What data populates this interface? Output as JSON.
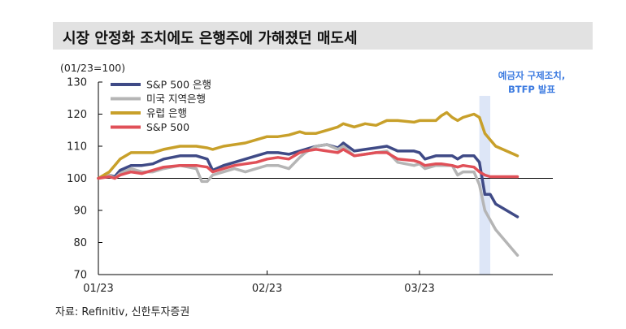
{
  "title": "시장 안정화 조치에도 은행주에 가해졌던 매도세",
  "source": "자료: Refinitiv, 신한투자증권",
  "chart_data": {
    "type": "line",
    "unit_label": "(01/23=100)",
    "ylim": [
      70,
      130
    ],
    "yticks": [
      70,
      80,
      90,
      100,
      110,
      120,
      130
    ],
    "x_range": [
      "2023-01-01",
      "2023-03-24"
    ],
    "xticks": [
      {
        "label": "01/23",
        "date": "2023-01-01"
      },
      {
        "label": "02/23",
        "date": "2023-02-01"
      },
      {
        "label": "03/23",
        "date": "2023-03-01"
      }
    ],
    "reference_line": 100,
    "annotation": {
      "text": [
        "예금자 구제조치,",
        "BTFP 발표"
      ],
      "date_range": [
        "2023-03-12",
        "2023-03-14"
      ],
      "color": "#3b7ae0"
    },
    "legend_position": "top-left",
    "series": [
      {
        "name": "S&P 500 은행",
        "color": "#3f4a86",
        "points": [
          [
            "2023-01-01",
            100
          ],
          [
            "2023-01-03",
            101
          ],
          [
            "2023-01-04",
            100.5
          ],
          [
            "2023-01-05",
            102.5
          ],
          [
            "2023-01-07",
            104
          ],
          [
            "2023-01-09",
            104
          ],
          [
            "2023-01-11",
            104.5
          ],
          [
            "2023-01-13",
            106
          ],
          [
            "2023-01-16",
            107
          ],
          [
            "2023-01-19",
            107
          ],
          [
            "2023-01-21",
            106
          ],
          [
            "2023-01-22",
            102.5
          ],
          [
            "2023-01-24",
            104
          ],
          [
            "2023-01-26",
            105
          ],
          [
            "2023-01-28",
            106
          ],
          [
            "2023-01-30",
            107
          ],
          [
            "2023-02-01",
            108
          ],
          [
            "2023-02-03",
            108
          ],
          [
            "2023-02-05",
            107.5
          ],
          [
            "2023-02-07",
            108.5
          ],
          [
            "2023-02-08",
            109
          ],
          [
            "2023-02-10",
            110
          ],
          [
            "2023-02-12",
            110.5
          ],
          [
            "2023-02-14",
            109.5
          ],
          [
            "2023-02-15",
            111
          ],
          [
            "2023-02-17",
            108.5
          ],
          [
            "2023-02-19",
            109
          ],
          [
            "2023-02-21",
            109.5
          ],
          [
            "2023-02-23",
            110
          ],
          [
            "2023-02-25",
            108.5
          ],
          [
            "2023-02-28",
            108.5
          ],
          [
            "2023-03-01",
            108
          ],
          [
            "2023-03-02",
            106
          ],
          [
            "2023-03-04",
            107
          ],
          [
            "2023-03-05",
            107
          ],
          [
            "2023-03-07",
            107
          ],
          [
            "2023-03-08",
            106
          ],
          [
            "2023-03-09",
            107
          ],
          [
            "2023-03-11",
            107
          ],
          [
            "2023-03-12",
            105
          ],
          [
            "2023-03-13",
            95
          ],
          [
            "2023-03-14",
            95
          ],
          [
            "2023-03-15",
            92
          ],
          [
            "2023-03-17",
            90
          ],
          [
            "2023-03-19",
            88
          ]
        ]
      },
      {
        "name": "미국 지역은행",
        "color": "#b5b5b5",
        "points": [
          [
            "2023-01-01",
            100
          ],
          [
            "2023-01-03",
            101
          ],
          [
            "2023-01-04",
            100
          ],
          [
            "2023-01-05",
            101.5
          ],
          [
            "2023-01-07",
            103
          ],
          [
            "2023-01-09",
            102
          ],
          [
            "2023-01-11",
            102
          ],
          [
            "2023-01-13",
            103
          ],
          [
            "2023-01-16",
            104
          ],
          [
            "2023-01-19",
            103
          ],
          [
            "2023-01-20",
            99
          ],
          [
            "2023-01-21",
            99
          ],
          [
            "2023-01-22",
            101
          ],
          [
            "2023-01-24",
            102
          ],
          [
            "2023-01-26",
            103
          ],
          [
            "2023-01-28",
            102
          ],
          [
            "2023-01-30",
            103
          ],
          [
            "2023-02-01",
            104
          ],
          [
            "2023-02-03",
            104
          ],
          [
            "2023-02-05",
            103
          ],
          [
            "2023-02-07",
            106.5
          ],
          [
            "2023-02-08",
            108
          ],
          [
            "2023-02-10",
            110
          ],
          [
            "2023-02-12",
            110.5
          ],
          [
            "2023-02-14",
            109
          ],
          [
            "2023-02-15",
            110
          ],
          [
            "2023-02-17",
            107
          ],
          [
            "2023-02-19",
            107.5
          ],
          [
            "2023-02-21",
            108
          ],
          [
            "2023-02-23",
            108.5
          ],
          [
            "2023-02-25",
            105
          ],
          [
            "2023-02-28",
            104
          ],
          [
            "2023-03-01",
            104.5
          ],
          [
            "2023-03-02",
            103
          ],
          [
            "2023-03-04",
            104
          ],
          [
            "2023-03-05",
            104
          ],
          [
            "2023-03-07",
            104
          ],
          [
            "2023-03-08",
            101
          ],
          [
            "2023-03-09",
            102
          ],
          [
            "2023-03-11",
            102
          ],
          [
            "2023-03-12",
            98
          ],
          [
            "2023-03-13",
            90
          ],
          [
            "2023-03-14",
            87
          ],
          [
            "2023-03-15",
            84
          ],
          [
            "2023-03-17",
            80
          ],
          [
            "2023-03-19",
            76
          ]
        ]
      },
      {
        "name": "유럽 은행",
        "color": "#c8a02a",
        "points": [
          [
            "2023-01-01",
            100
          ],
          [
            "2023-01-03",
            102
          ],
          [
            "2023-01-04",
            104
          ],
          [
            "2023-01-05",
            106
          ],
          [
            "2023-01-07",
            108
          ],
          [
            "2023-01-09",
            108
          ],
          [
            "2023-01-11",
            108
          ],
          [
            "2023-01-13",
            109
          ],
          [
            "2023-01-16",
            110
          ],
          [
            "2023-01-19",
            110
          ],
          [
            "2023-01-21",
            109.5
          ],
          [
            "2023-01-22",
            109
          ],
          [
            "2023-01-24",
            110
          ],
          [
            "2023-01-26",
            110.5
          ],
          [
            "2023-01-28",
            111
          ],
          [
            "2023-01-30",
            112
          ],
          [
            "2023-02-01",
            113
          ],
          [
            "2023-02-03",
            113
          ],
          [
            "2023-02-05",
            113.5
          ],
          [
            "2023-02-07",
            114.5
          ],
          [
            "2023-02-08",
            114
          ],
          [
            "2023-02-10",
            114
          ],
          [
            "2023-02-12",
            115
          ],
          [
            "2023-02-14",
            116
          ],
          [
            "2023-02-15",
            117
          ],
          [
            "2023-02-17",
            116
          ],
          [
            "2023-02-19",
            117
          ],
          [
            "2023-02-21",
            116.5
          ],
          [
            "2023-02-23",
            118
          ],
          [
            "2023-02-25",
            118
          ],
          [
            "2023-02-28",
            117.5
          ],
          [
            "2023-03-01",
            118
          ],
          [
            "2023-03-02",
            118
          ],
          [
            "2023-03-04",
            118
          ],
          [
            "2023-03-05",
            119.5
          ],
          [
            "2023-03-06",
            120.5
          ],
          [
            "2023-03-07",
            119
          ],
          [
            "2023-03-08",
            118
          ],
          [
            "2023-03-09",
            119
          ],
          [
            "2023-03-11",
            120
          ],
          [
            "2023-03-12",
            119
          ],
          [
            "2023-03-13",
            114
          ],
          [
            "2023-03-14",
            112
          ],
          [
            "2023-03-15",
            110
          ],
          [
            "2023-03-17",
            108.5
          ],
          [
            "2023-03-19",
            107
          ]
        ]
      },
      {
        "name": "S&P 500",
        "color": "#e05058",
        "points": [
          [
            "2023-01-01",
            100
          ],
          [
            "2023-01-03",
            100.5
          ],
          [
            "2023-01-04",
            100
          ],
          [
            "2023-01-05",
            101
          ],
          [
            "2023-01-07",
            102
          ],
          [
            "2023-01-09",
            101.5
          ],
          [
            "2023-01-11",
            102.5
          ],
          [
            "2023-01-13",
            103.5
          ],
          [
            "2023-01-16",
            104
          ],
          [
            "2023-01-19",
            104
          ],
          [
            "2023-01-21",
            103.5
          ],
          [
            "2023-01-22",
            102
          ],
          [
            "2023-01-24",
            103
          ],
          [
            "2023-01-26",
            104
          ],
          [
            "2023-01-28",
            104.5
          ],
          [
            "2023-01-30",
            105
          ],
          [
            "2023-02-01",
            106
          ],
          [
            "2023-02-03",
            106.5
          ],
          [
            "2023-02-05",
            106
          ],
          [
            "2023-02-07",
            108
          ],
          [
            "2023-02-08",
            108.5
          ],
          [
            "2023-02-10",
            109
          ],
          [
            "2023-02-12",
            108.5
          ],
          [
            "2023-02-14",
            108
          ],
          [
            "2023-02-15",
            109
          ],
          [
            "2023-02-17",
            107
          ],
          [
            "2023-02-19",
            107.5
          ],
          [
            "2023-02-21",
            108
          ],
          [
            "2023-02-23",
            108
          ],
          [
            "2023-02-25",
            106
          ],
          [
            "2023-02-28",
            105.5
          ],
          [
            "2023-03-01",
            105
          ],
          [
            "2023-03-02",
            104
          ],
          [
            "2023-03-04",
            104.5
          ],
          [
            "2023-03-05",
            104.5
          ],
          [
            "2023-03-07",
            104
          ],
          [
            "2023-03-08",
            103.5
          ],
          [
            "2023-03-09",
            104
          ],
          [
            "2023-03-11",
            103.5
          ],
          [
            "2023-03-12",
            102
          ],
          [
            "2023-03-13",
            101
          ],
          [
            "2023-03-14",
            100.5
          ],
          [
            "2023-03-15",
            100.5
          ],
          [
            "2023-03-17",
            100.5
          ],
          [
            "2023-03-19",
            100.5
          ]
        ]
      }
    ]
  }
}
